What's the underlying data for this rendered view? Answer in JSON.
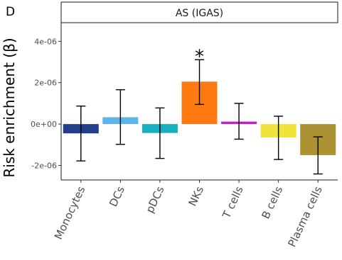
{
  "panel_label": "D",
  "chart_data": {
    "type": "bar",
    "facet_title": "AS (IGAS)",
    "xlabel": "",
    "ylabel": "Risk enrichment (β)",
    "ylim": [
      -2.7e-06,
      4.9e-06
    ],
    "yticks": [
      -2e-06,
      0,
      2e-06,
      4e-06
    ],
    "ytick_labels": [
      "-2e-06",
      "0e+00",
      "2e-06",
      "4e-06"
    ],
    "grid": false,
    "categories": [
      "Monocytes",
      "DCs",
      "pDCs",
      "NKs",
      "T cells",
      "B cells",
      "Plasma cells"
    ],
    "values": [
      -4.5e-07,
      3.3e-07,
      -4.3e-07,
      2.05e-06,
      1.2e-07,
      -6.5e-07,
      -1.5e-06
    ],
    "error_low": [
      -1.78e-06,
      -9.8e-07,
      -1.66e-06,
      9.5e-07,
      -7.3e-07,
      -1.71e-06,
      -2.41e-06
    ],
    "error_high": [
      8.7e-07,
      1.66e-06,
      7.8e-07,
      3.11e-06,
      1e-06,
      3.8e-07,
      -6.2e-07
    ],
    "colors": [
      "#233f8b",
      "#5db4e8",
      "#18b0c0",
      "#ff7a12",
      "#c41fbf",
      "#f0e33c",
      "#ad9234"
    ],
    "annotations": [
      {
        "category": "NKs",
        "text": "*"
      }
    ]
  }
}
